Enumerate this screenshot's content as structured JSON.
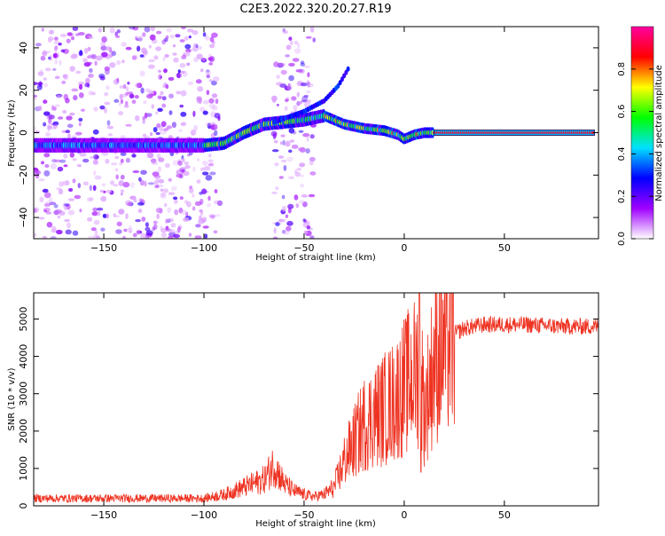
{
  "title": "C2E3.2022.320.20.27.R19",
  "chart_data": [
    {
      "type": "heatmap",
      "xlabel": "Height of straight line (km)",
      "ylabel": "Frequency (Hz)",
      "xlim": [
        -185,
        97
      ],
      "ylim": [
        -50,
        50
      ],
      "x_ticks": [
        -150,
        -100,
        -50,
        0,
        50
      ],
      "y_ticks": [
        -40,
        -20,
        0,
        20,
        40
      ],
      "colorbar": {
        "label": "Normalized spectral amplitude",
        "range": [
          0,
          1
        ],
        "ticks": [
          0.0,
          0.2,
          0.4,
          0.6,
          0.8
        ],
        "colors": [
          "#ffffff",
          "#a000ff",
          "#0000ff",
          "#00e0ff",
          "#00ff00",
          "#ffff00",
          "#ff0000",
          "#ff00a0"
        ]
      },
      "ridge": {
        "x": [
          -185,
          -160,
          -130,
          -110,
          -100,
          -90,
          -80,
          -70,
          -60,
          -50,
          -40,
          -35,
          -30,
          -20,
          -10,
          -3,
          0,
          5,
          10,
          15,
          20,
          50,
          95
        ],
        "y": [
          -6,
          -6,
          -6,
          -6,
          -6,
          -5,
          0,
          4,
          5,
          6,
          8,
          6,
          4,
          2,
          1,
          -1,
          -3,
          -1,
          0,
          0,
          0,
          0,
          0
        ]
      },
      "noise_bands": [
        [
          -185,
          -92
        ],
        [
          -65,
          -45
        ]
      ],
      "secondary_branch": {
        "x": [
          -65,
          -50,
          -40,
          -33,
          -28
        ],
        "y": [
          5,
          10,
          15,
          22,
          30
        ]
      }
    },
    {
      "type": "line",
      "xlabel": "Height of straight line (km)",
      "ylabel": "SNR (10 * v/v)",
      "xlim": [
        -185,
        97
      ],
      "ylim": [
        0,
        5700
      ],
      "x_ticks": [
        -150,
        -100,
        -50,
        0,
        50
      ],
      "y_ticks": [
        0,
        1000,
        2000,
        3000,
        4000,
        5000
      ],
      "color": "#ee3322",
      "envelope": {
        "x": [
          -185,
          -100,
          -90,
          -80,
          -70,
          -65,
          -60,
          -55,
          -50,
          -45,
          -40,
          -35,
          -30,
          -25,
          -20,
          -15,
          -10,
          -5,
          0,
          5,
          8,
          10,
          15,
          20,
          25,
          30,
          40,
          60,
          80,
          97
        ],
        "y": [
          200,
          200,
          300,
          500,
          700,
          1100,
          600,
          400,
          300,
          250,
          300,
          500,
          1200,
          1700,
          2200,
          2400,
          2600,
          2800,
          3200,
          3500,
          3800,
          2500,
          3900,
          4300,
          4600,
          4750,
          4850,
          4850,
          4800,
          4800
        ]
      }
    }
  ]
}
